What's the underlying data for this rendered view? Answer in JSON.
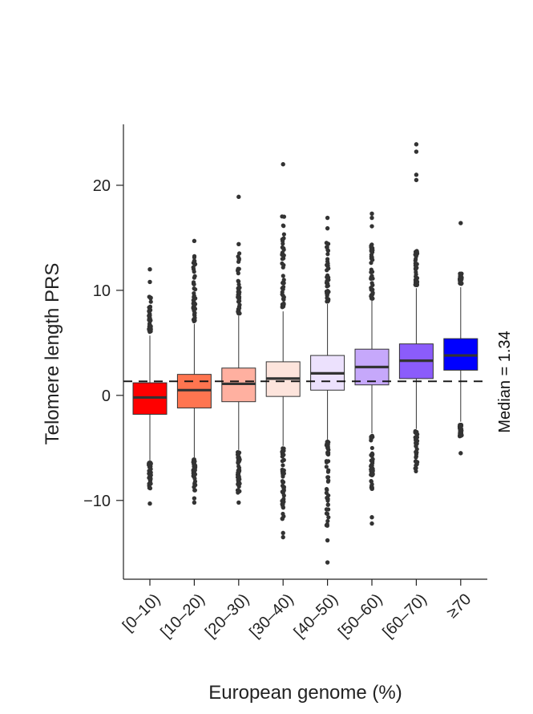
{
  "chart_data": {
    "type": "box",
    "title": "",
    "xlabel": "European genome (%)",
    "ylabel": "Telomere length PRS",
    "ylim": [
      -17.5,
      25.8
    ],
    "yticks": [
      -10,
      0,
      10,
      20
    ],
    "ytick_labels": [
      "−10",
      "0",
      "10",
      "20"
    ],
    "reference_line": {
      "value": 1.34,
      "style": "dashed",
      "label": "Median = 1.34"
    },
    "categories": [
      "[0–10)",
      "[10–20)",
      "[20–30)",
      "[30–40)",
      "[40–50)",
      "[50–60)",
      "[60–70)",
      "≥70"
    ],
    "boxes": [
      {
        "category": "[0–10)",
        "q1": -1.8,
        "median": -0.2,
        "q3": 1.2,
        "whisker_low": -6.2,
        "whisker_high": 5.7,
        "color": "#ff0000",
        "outliers_low_range": [
          -9.2,
          -6.4
        ],
        "outliers_high_range": [
          6.0,
          9.6
        ],
        "outliers": [
          12.0,
          10.8,
          -10.3
        ]
      },
      {
        "category": "[10–20)",
        "q1": -1.2,
        "median": 0.5,
        "q3": 2.0,
        "whisker_low": -5.9,
        "whisker_high": 6.8,
        "color": "#ff7550",
        "outliers_low_range": [
          -9.2,
          -6.1
        ],
        "outliers_high_range": [
          7.0,
          13.5
        ],
        "outliers": [
          14.7,
          12.8,
          -9.8,
          -10.2
        ]
      },
      {
        "category": "[20–30)",
        "q1": -0.6,
        "median": 1.1,
        "q3": 2.6,
        "whisker_low": -5.2,
        "whisker_high": 7.6,
        "color": "#ffb0a0",
        "outliers_low_range": [
          -9.3,
          -5.4
        ],
        "outliers_high_range": [
          7.8,
          13.8
        ],
        "outliers": [
          18.9,
          14.4,
          -10.2
        ]
      },
      {
        "category": "[30–40)",
        "q1": -0.1,
        "median": 1.6,
        "q3": 3.2,
        "whisker_low": -4.8,
        "whisker_high": 8.0,
        "color": "#fde4dc",
        "outliers_low_range": [
          -12.0,
          -5.0
        ],
        "outliers_high_range": [
          8.2,
          17.3
        ],
        "outliers": [
          22.0,
          -13.1,
          -13.5
        ]
      },
      {
        "category": "[40–50)",
        "q1": 0.5,
        "median": 2.1,
        "q3": 3.8,
        "whisker_low": -4.2,
        "whisker_high": 8.7,
        "color": "#ece1fd",
        "outliers_low_range": [
          -12.5,
          -4.4
        ],
        "outliers_high_range": [
          8.9,
          14.8
        ],
        "outliers": [
          16.9,
          15.9,
          -13.8,
          -15.9
        ]
      },
      {
        "category": "[50–60)",
        "q1": 1.0,
        "median": 2.7,
        "q3": 4.4,
        "whisker_low": -3.6,
        "whisker_high": 9.0,
        "color": "#c6a8fb",
        "outliers_low_range": [
          -9.0,
          -3.8
        ],
        "outliers_high_range": [
          9.2,
          14.5
        ],
        "outliers": [
          17.3,
          16.9,
          16.1,
          -11.6,
          -12.2
        ]
      },
      {
        "category": "[60–70)",
        "q1": 1.6,
        "median": 3.3,
        "q3": 4.9,
        "whisker_low": -3.2,
        "whisker_high": 10.2,
        "color": "#8b5cfb",
        "outliers_low_range": [
          -7.3,
          -3.4
        ],
        "outliers_high_range": [
          10.5,
          13.8
        ],
        "outliers": [
          23.9,
          23.2,
          21.0,
          20.5
        ]
      },
      {
        "category": "≥70",
        "q1": 2.4,
        "median": 3.8,
        "q3": 5.4,
        "whisker_low": -2.5,
        "whisker_high": 10.3,
        "color": "#0000ff",
        "outliers_low_range": [
          -3.9,
          -2.8
        ],
        "outliers_high_range": [
          10.6,
          11.6
        ],
        "outliers": [
          16.4,
          -5.5
        ]
      }
    ],
    "grid": false,
    "legend": "none"
  }
}
